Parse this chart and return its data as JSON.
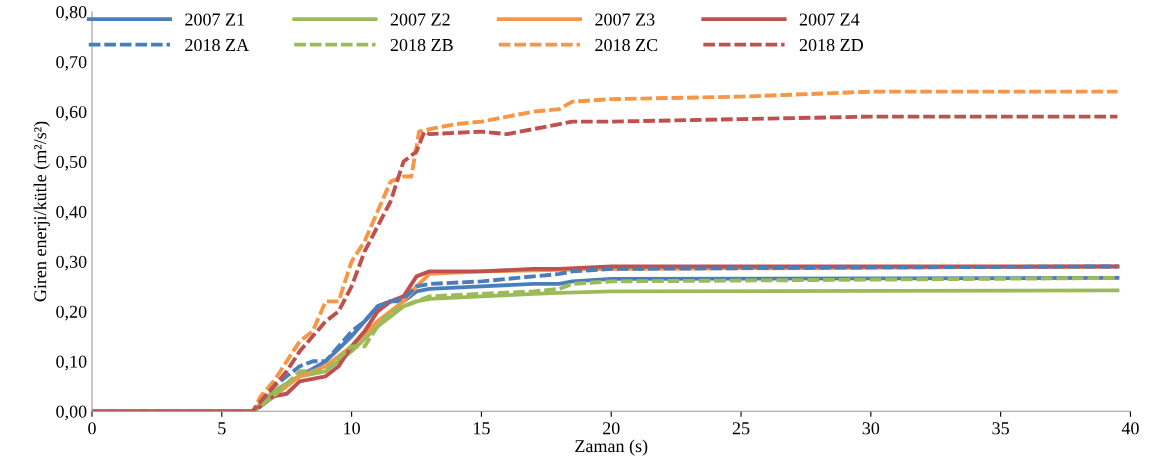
{
  "chart_data": {
    "type": "line",
    "xlabel": "Zaman (s)",
    "ylabel": "Giren enerji/kütle (m²/s²)",
    "xlim": [
      0,
      40
    ],
    "xticks": [
      0,
      5,
      10,
      15,
      20,
      25,
      30,
      35,
      40
    ],
    "ylim": [
      0,
      0.8
    ],
    "yticks": [
      {
        "value": 0,
        "label": "0,00"
      },
      {
        "value": 0.1,
        "label": "0,10"
      },
      {
        "value": 0.2,
        "label": "0,20"
      },
      {
        "value": 0.3,
        "label": "0,30"
      },
      {
        "value": 0.4,
        "label": "0,40"
      },
      {
        "value": 0.5,
        "label": "0,50"
      },
      {
        "value": 0.6,
        "label": "0,60"
      },
      {
        "value": 0.7,
        "label": "0,70"
      },
      {
        "value": 0.8,
        "label": "0,80"
      }
    ],
    "grid": false,
    "legend": "top",
    "marker": "none",
    "series": [
      {
        "name": "2007 Z1",
        "color": "#4a7ebb",
        "line_style": "solid",
        "x": [
          0,
          6.2,
          7,
          8,
          9,
          10,
          11,
          11.5,
          12,
          12.5,
          13,
          15,
          17,
          18,
          18.5,
          20,
          39.5
        ],
        "values": [
          0,
          0,
          0.04,
          0.07,
          0.1,
          0.15,
          0.21,
          0.22,
          0.22,
          0.24,
          0.245,
          0.25,
          0.255,
          0.255,
          0.26,
          0.265,
          0.267
        ]
      },
      {
        "name": "2007 Z2",
        "color": "#9bbb59",
        "line_style": "solid",
        "x": [
          0,
          6.2,
          7,
          8,
          9,
          10,
          11,
          12,
          12.5,
          13,
          15,
          17,
          18,
          20,
          39.5
        ],
        "values": [
          0,
          0,
          0.04,
          0.07,
          0.08,
          0.12,
          0.17,
          0.21,
          0.22,
          0.225,
          0.23,
          0.235,
          0.237,
          0.24,
          0.242
        ]
      },
      {
        "name": "2007 Z3",
        "color": "#f79646",
        "line_style": "solid",
        "x": [
          0,
          6.2,
          7,
          8,
          9,
          10,
          11,
          12,
          12.5,
          13,
          15,
          20,
          39.5
        ],
        "values": [
          0,
          0,
          0.03,
          0.07,
          0.09,
          0.13,
          0.18,
          0.22,
          0.25,
          0.275,
          0.28,
          0.285,
          0.29
        ]
      },
      {
        "name": "2007 Z4",
        "color": "#c0504d",
        "line_style": "solid",
        "x": [
          0,
          6.2,
          6.5,
          7,
          7.5,
          8,
          8.5,
          9,
          9.5,
          10,
          10.5,
          11,
          11.5,
          12,
          12.5,
          13,
          15,
          17,
          18,
          20,
          30,
          39.5
        ],
        "values": [
          0,
          0,
          0.01,
          0.03,
          0.035,
          0.06,
          0.065,
          0.07,
          0.09,
          0.13,
          0.16,
          0.2,
          0.22,
          0.23,
          0.27,
          0.28,
          0.28,
          0.285,
          0.285,
          0.29,
          0.29,
          0.29
        ]
      },
      {
        "name": "2018 ZA",
        "color": "#4a7ebb",
        "line_style": "dashed",
        "x": [
          0,
          6.2,
          7,
          8,
          8.5,
          9,
          10,
          10.5,
          11,
          11.5,
          12,
          12.5,
          13,
          15,
          17,
          18,
          18.5,
          20,
          30,
          39.5
        ],
        "values": [
          0,
          0,
          0.05,
          0.09,
          0.1,
          0.1,
          0.16,
          0.18,
          0.21,
          0.22,
          0.225,
          0.25,
          0.255,
          0.26,
          0.27,
          0.275,
          0.28,
          0.285,
          0.288,
          0.29
        ]
      },
      {
        "name": "2018 ZB",
        "color": "#9bbb59",
        "line_style": "dashed",
        "x": [
          0,
          6.2,
          7,
          8,
          9,
          10,
          10.5,
          11,
          11.5,
          12,
          12.5,
          13,
          15,
          17,
          18,
          18.5,
          20,
          39.5
        ],
        "values": [
          0,
          0,
          0.03,
          0.08,
          0.08,
          0.13,
          0.13,
          0.17,
          0.2,
          0.21,
          0.22,
          0.23,
          0.235,
          0.24,
          0.245,
          0.255,
          0.26,
          0.267
        ]
      },
      {
        "name": "2018 ZC",
        "color": "#f79646",
        "line_style": "dashed",
        "x": [
          0,
          6.2,
          6.5,
          7,
          7.5,
          8,
          8.5,
          9,
          9.5,
          10,
          10.5,
          11,
          11.5,
          12,
          12.3,
          12.6,
          13,
          14,
          15,
          16,
          17,
          18,
          18.5,
          20,
          25,
          30,
          39.5
        ],
        "values": [
          0,
          0,
          0.03,
          0.06,
          0.1,
          0.14,
          0.16,
          0.22,
          0.22,
          0.3,
          0.34,
          0.4,
          0.46,
          0.47,
          0.47,
          0.56,
          0.565,
          0.575,
          0.58,
          0.59,
          0.6,
          0.605,
          0.62,
          0.625,
          0.63,
          0.64,
          0.64
        ]
      },
      {
        "name": "2018 ZD",
        "color": "#c0504d",
        "line_style": "dashed",
        "x": [
          0,
          6.2,
          6.5,
          7,
          7.5,
          8,
          8.5,
          9,
          9.5,
          10,
          10.5,
          11,
          11.5,
          12,
          12.5,
          12.8,
          13,
          15,
          16,
          17,
          18,
          18.5,
          20,
          25,
          30,
          39.5
        ],
        "values": [
          0,
          0,
          0.02,
          0.05,
          0.08,
          0.12,
          0.15,
          0.18,
          0.2,
          0.25,
          0.32,
          0.37,
          0.42,
          0.5,
          0.52,
          0.56,
          0.555,
          0.56,
          0.555,
          0.565,
          0.575,
          0.58,
          0.58,
          0.585,
          0.59,
          0.59
        ]
      }
    ]
  }
}
